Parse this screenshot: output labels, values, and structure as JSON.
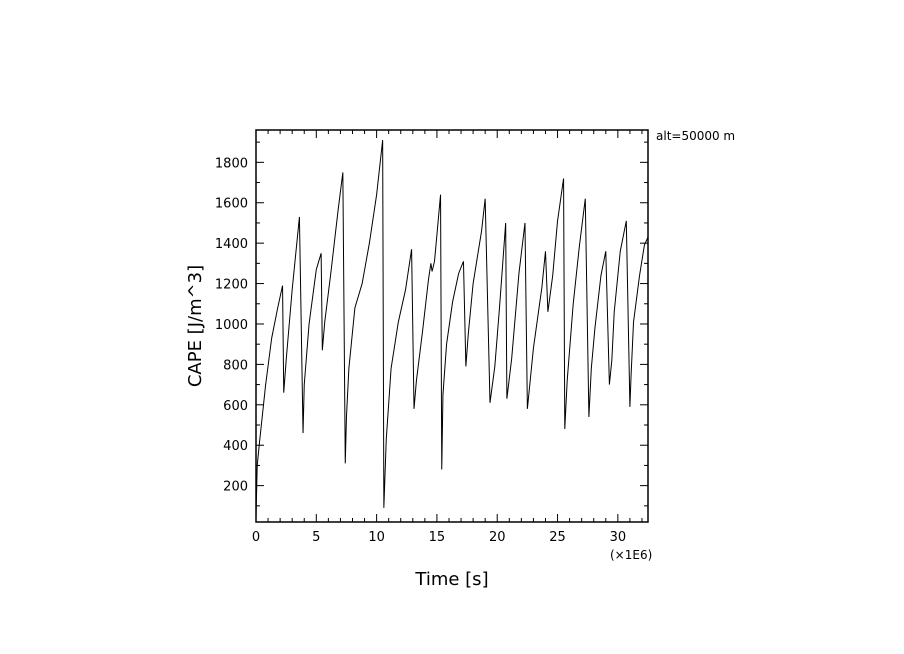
{
  "chart_data": {
    "type": "line",
    "title": "",
    "xlabel": "Time [s]",
    "ylabel": "CAPE [J/m^3]",
    "x_multiplier_label": "(×1E6)",
    "annotation": "alt=50000  m",
    "xlim": [
      0,
      32.5
    ],
    "ylim": [
      20,
      1960
    ],
    "x_ticks": [
      0,
      5,
      10,
      15,
      20,
      25,
      30
    ],
    "x_tick_labels": [
      "0",
      "5",
      "10",
      "15",
      "20",
      "25",
      "30"
    ],
    "y_ticks": [
      200,
      400,
      600,
      800,
      1000,
      1200,
      1400,
      1600,
      1800
    ],
    "y_tick_labels": [
      "200",
      "400",
      "600",
      "800",
      "1000",
      "1200",
      "1400",
      "1600",
      "1800"
    ],
    "grid": false,
    "line_color": "#000000",
    "series": [
      {
        "x": [
          0.0,
          0.1,
          0.3,
          0.8,
          1.3,
          1.8,
          2.2,
          2.3,
          2.5,
          3.0,
          3.6,
          3.9,
          4.0,
          4.4,
          5.0,
          5.4,
          5.5,
          5.7,
          6.2,
          6.8,
          7.2,
          7.4,
          7.5,
          7.7,
          8.2,
          8.8,
          9.4,
          10.0,
          10.5,
          10.6,
          10.8,
          11.2,
          11.8,
          12.4,
          12.9,
          13.1,
          13.3,
          13.8,
          14.3,
          14.5,
          14.6,
          14.8,
          15.3,
          15.4,
          15.5,
          15.8,
          16.3,
          16.8,
          17.2,
          17.4,
          17.6,
          18.0,
          18.7,
          19.0,
          19.4,
          19.8,
          20.2,
          20.7,
          20.8,
          21.2,
          21.8,
          22.3,
          22.5,
          23.0,
          23.7,
          24.0,
          24.2,
          24.6,
          25.0,
          25.5,
          25.6,
          25.8,
          26.3,
          26.8,
          27.3,
          27.6,
          27.8,
          28.1,
          28.6,
          29.0,
          29.3,
          29.5,
          29.7,
          30.2,
          30.7,
          31.0,
          31.1,
          31.3,
          31.8,
          32.2,
          32.5
        ],
        "y": [
          40,
          300,
          420,
          700,
          930,
          1080,
          1190,
          660,
          820,
          1170,
          1530,
          460,
          700,
          1000,
          1270,
          1350,
          870,
          1010,
          1250,
          1560,
          1750,
          310,
          540,
          780,
          1080,
          1200,
          1400,
          1640,
          1910,
          90,
          430,
          780,
          1010,
          1170,
          1370,
          580,
          720,
          960,
          1220,
          1300,
          1260,
          1310,
          1640,
          280,
          650,
          900,
          1110,
          1250,
          1310,
          790,
          950,
          1200,
          1460,
          1620,
          610,
          790,
          1090,
          1500,
          630,
          830,
          1250,
          1500,
          580,
          880,
          1180,
          1360,
          1060,
          1240,
          1510,
          1720,
          480,
          720,
          1100,
          1380,
          1620,
          540,
          780,
          980,
          1240,
          1360,
          700,
          820,
          1060,
          1360,
          1510,
          590,
          750,
          1010,
          1240,
          1390,
          1430
        ]
      }
    ]
  }
}
